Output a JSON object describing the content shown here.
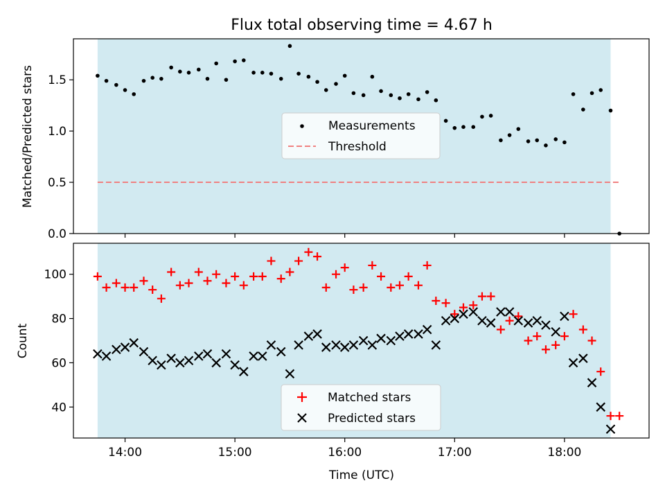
{
  "title": "Flux total observing time = 4.67 h",
  "colors": {
    "observing_span": "#add8e6",
    "measurement": "#000000",
    "threshold": "#f08080",
    "matched": "#ff0000",
    "predicted": "#000000"
  },
  "chart_data": [
    {
      "type": "scatter",
      "ylabel": "Matched/Predicted stars",
      "ylim": [
        0,
        1.9
      ],
      "yticks": [
        0.0,
        0.5,
        1.0,
        1.5
      ],
      "yticklabels": [
        "0.0",
        "0.5",
        "1.0",
        "1.5"
      ],
      "xlim": [
        13.53,
        18.77
      ],
      "xticks": [
        14,
        15,
        16,
        17,
        18
      ],
      "xticklabels": [],
      "observing_span": [
        13.75,
        18.42
      ],
      "legend": {
        "placement": "center",
        "entries": [
          "Measurements",
          "Threshold"
        ]
      },
      "threshold": {
        "name": "Threshold",
        "value": 0.5,
        "x_range": [
          13.75,
          18.5
        ],
        "style": "dashed"
      },
      "series": [
        {
          "name": "Measurements",
          "marker": "dot",
          "x": [
            13.75,
            13.83,
            13.92,
            14.0,
            14.08,
            14.17,
            14.25,
            14.33,
            14.42,
            14.5,
            14.58,
            14.67,
            14.75,
            14.83,
            14.92,
            15.0,
            15.08,
            15.17,
            15.25,
            15.33,
            15.42,
            15.5,
            15.58,
            15.67,
            15.75,
            15.83,
            15.92,
            16.0,
            16.08,
            16.17,
            16.25,
            16.33,
            16.42,
            16.5,
            16.58,
            16.67,
            16.75,
            16.83,
            16.92,
            17.0,
            17.08,
            17.17,
            17.25,
            17.33,
            17.42,
            17.5,
            17.58,
            17.67,
            17.75,
            17.83,
            17.92,
            18.0,
            18.08,
            18.17,
            18.25,
            18.33,
            18.42,
            18.5
          ],
          "y": [
            1.54,
            1.49,
            1.45,
            1.4,
            1.36,
            1.49,
            1.52,
            1.51,
            1.62,
            1.58,
            1.57,
            1.6,
            1.51,
            1.66,
            1.5,
            1.68,
            1.69,
            1.57,
            1.57,
            1.56,
            1.51,
            1.83,
            1.56,
            1.53,
            1.48,
            1.4,
            1.46,
            1.54,
            1.37,
            1.35,
            1.53,
            1.39,
            1.35,
            1.32,
            1.36,
            1.31,
            1.38,
            1.3,
            1.1,
            1.03,
            1.04,
            1.04,
            1.14,
            1.15,
            0.91,
            0.96,
            1.02,
            0.9,
            0.91,
            0.86,
            0.92,
            0.89,
            1.36,
            1.21,
            1.37,
            1.4,
            1.2,
            0.0
          ]
        }
      ]
    },
    {
      "type": "scatter",
      "xlabel": "Time (UTC)",
      "ylabel": "Count",
      "ylim": [
        26,
        114
      ],
      "yticks": [
        40,
        60,
        80,
        100
      ],
      "yticklabels": [
        "40",
        "60",
        "80",
        "100"
      ],
      "xlim": [
        13.53,
        18.77
      ],
      "xticks": [
        14,
        15,
        16,
        17,
        18
      ],
      "xticklabels": [
        "14:00",
        "15:00",
        "16:00",
        "17:00",
        "18:00"
      ],
      "observing_span": [
        13.75,
        18.42
      ],
      "legend": {
        "placement": "lower center",
        "entries": [
          "Matched stars",
          "Predicted stars"
        ]
      },
      "series": [
        {
          "name": "Matched stars",
          "marker": "plus",
          "x": [
            13.75,
            13.83,
            13.92,
            14.0,
            14.08,
            14.17,
            14.25,
            14.33,
            14.42,
            14.5,
            14.58,
            14.67,
            14.75,
            14.83,
            14.92,
            15.0,
            15.08,
            15.17,
            15.25,
            15.33,
            15.42,
            15.5,
            15.58,
            15.67,
            15.75,
            15.83,
            15.92,
            16.0,
            16.08,
            16.17,
            16.25,
            16.33,
            16.42,
            16.5,
            16.58,
            16.67,
            16.75,
            16.83,
            16.92,
            17.0,
            17.08,
            17.17,
            17.25,
            17.33,
            17.42,
            17.5,
            17.58,
            17.67,
            17.75,
            17.83,
            17.92,
            18.0,
            18.08,
            18.17,
            18.25,
            18.33,
            18.42,
            18.5
          ],
          "y": [
            99,
            94,
            96,
            94,
            94,
            97,
            93,
            89,
            101,
            95,
            96,
            101,
            97,
            100,
            96,
            99,
            95,
            99,
            99,
            106,
            98,
            101,
            106,
            110,
            108,
            94,
            100,
            103,
            93,
            94,
            104,
            99,
            94,
            95,
            99,
            95,
            104,
            88,
            87,
            82,
            85,
            86,
            90,
            90,
            75,
            79,
            81,
            70,
            72,
            66,
            68,
            72,
            82,
            75,
            70,
            56,
            36,
            36
          ]
        },
        {
          "name": "Predicted stars",
          "marker": "x",
          "x": [
            13.75,
            13.83,
            13.92,
            14.0,
            14.08,
            14.17,
            14.25,
            14.33,
            14.42,
            14.5,
            14.58,
            14.67,
            14.75,
            14.83,
            14.92,
            15.0,
            15.08,
            15.17,
            15.25,
            15.33,
            15.42,
            15.5,
            15.58,
            15.67,
            15.75,
            15.83,
            15.92,
            16.0,
            16.08,
            16.17,
            16.25,
            16.33,
            16.42,
            16.5,
            16.58,
            16.67,
            16.75,
            16.83,
            16.92,
            17.0,
            17.08,
            17.17,
            17.25,
            17.33,
            17.42,
            17.5,
            17.58,
            17.67,
            17.75,
            17.83,
            17.92,
            18.0,
            18.08,
            18.17,
            18.25,
            18.33,
            18.42
          ],
          "y": [
            64,
            63,
            66,
            67,
            69,
            65,
            61,
            59,
            62,
            60,
            61,
            63,
            64,
            60,
            64,
            59,
            56,
            63,
            63,
            68,
            65,
            55,
            68,
            72,
            73,
            67,
            68,
            67,
            68,
            70,
            68,
            71,
            70,
            72,
            73,
            73,
            75,
            68,
            79,
            80,
            82,
            83,
            79,
            78,
            83,
            83,
            79,
            78,
            79,
            77,
            74,
            81,
            60,
            62,
            51,
            40,
            30
          ]
        }
      ]
    }
  ]
}
